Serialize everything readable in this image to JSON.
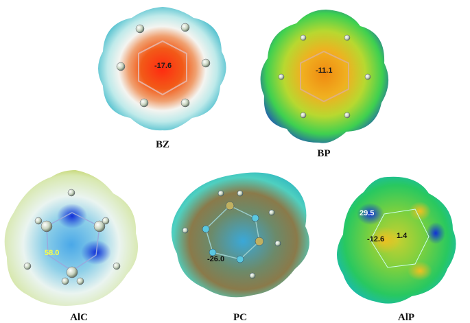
{
  "panels": [
    {
      "id": "bz",
      "label": "BZ",
      "values": [
        "-17.6"
      ]
    },
    {
      "id": "bp",
      "label": "BP",
      "values": [
        "-11.1"
      ]
    },
    {
      "id": "alc",
      "label": "AlC",
      "values": [
        "58.0"
      ]
    },
    {
      "id": "pc",
      "label": "PC",
      "values": [
        "-26.0"
      ]
    },
    {
      "id": "alp",
      "label": "AlP",
      "values": [
        "29.5",
        "-12.6",
        "1.4"
      ]
    }
  ],
  "colors": {
    "positive": "#1a3fd0",
    "negative": "#e0220f",
    "neutral": "#2fc84a",
    "atom": "#c8d4c0"
  }
}
